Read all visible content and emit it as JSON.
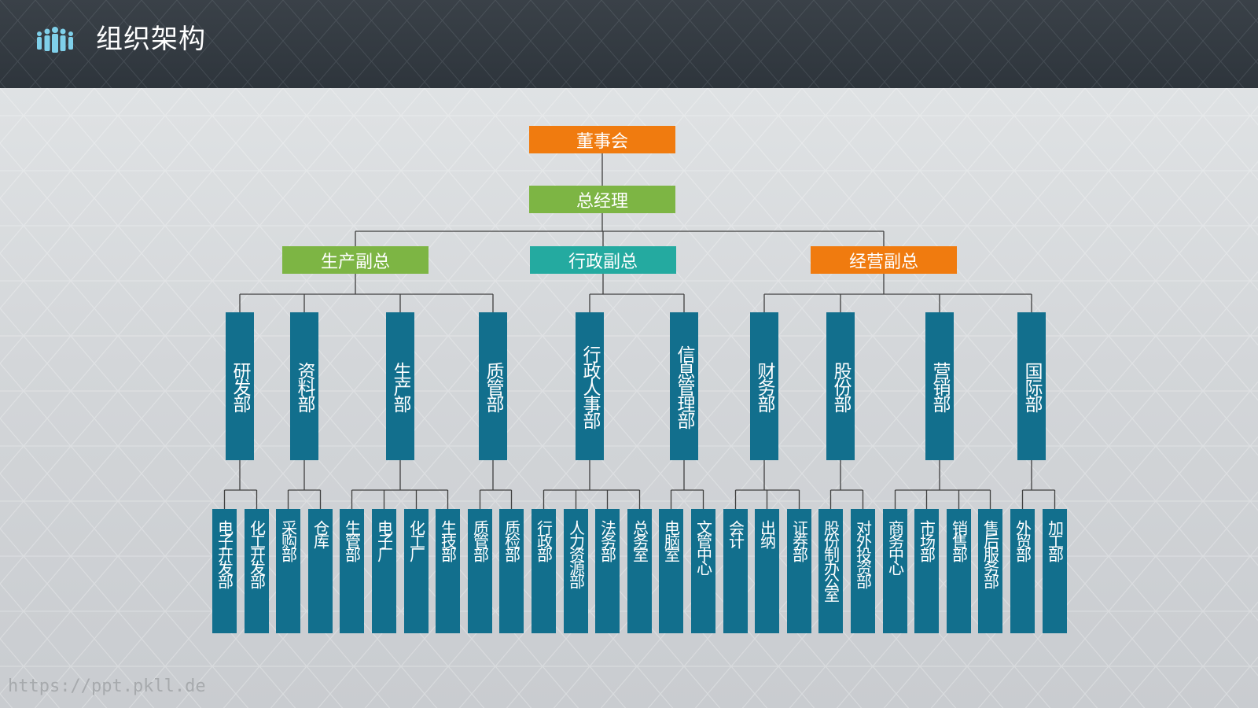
{
  "header": {
    "title": "组织架构",
    "icon": "people-group-icon"
  },
  "colors": {
    "orange": "#f07b0f",
    "green": "#7db544",
    "teal": "#24aaa0",
    "blue": "#126f8d"
  },
  "top": {
    "board": "董事会",
    "gm": "总经理"
  },
  "vps": [
    {
      "label": "生产副总",
      "color": "#7db544"
    },
    {
      "label": "行政副总",
      "color": "#24aaa0"
    },
    {
      "label": "经营副总",
      "color": "#f07b0f"
    }
  ],
  "departments": [
    {
      "label": "研发部",
      "children": [
        "电子开发部",
        "化工开发部"
      ]
    },
    {
      "label": "资料部",
      "children": [
        "采购部",
        "仓库"
      ]
    },
    {
      "label": "生产部",
      "children": [
        "生管部",
        "电子厂",
        "化工厂",
        "生技部"
      ]
    },
    {
      "label": "质管部",
      "children": [
        "质管部",
        "质检部"
      ]
    },
    {
      "label": "行政人事部",
      "children": [
        "行政部",
        "人力资源部",
        "法务部",
        "总务室"
      ]
    },
    {
      "label": "信息管理部",
      "children": [
        "电脑室",
        "文管中心"
      ]
    },
    {
      "label": "财务部",
      "children": [
        "会计",
        "出纳",
        "证券部"
      ]
    },
    {
      "label": "股份部",
      "children": [
        "股份制办公室",
        "对外投资部"
      ]
    },
    {
      "label": "营销部",
      "children": [
        "商务中心",
        "市场部",
        "销售部",
        "售后服务部"
      ]
    },
    {
      "label": "国际部",
      "children": [
        "外贸部",
        "加工部"
      ]
    }
  ],
  "watermark": "https://ppt.pkll.de"
}
